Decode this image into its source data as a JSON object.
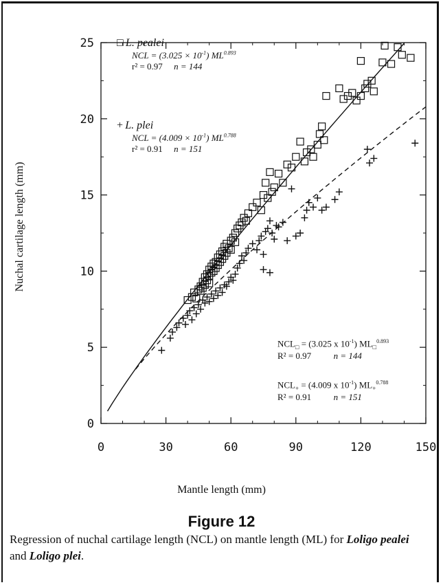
{
  "figure": {
    "title": "Figure 12",
    "caption_pre": "Regression of nuchal cartilage length (NCL) on mantle length (ML) for ",
    "caption_species1": "Loligo pealei",
    "caption_and": " and ",
    "caption_species2": "Loligo plei",
    "caption_end": "."
  },
  "legend": {
    "pealei": {
      "symbol": "□",
      "name": "L. pealei",
      "eq_main": "NCL = (3.025 × 10",
      "eq_exp1": "-1",
      "eq_mid": ") ML",
      "eq_exp2": "0.893",
      "r2": "r² = 0.97",
      "n": "n = 144"
    },
    "plei": {
      "symbol": "+",
      "name": "L. plei",
      "eq_main": "NCL = (4.009 × 10",
      "eq_exp1": "-1",
      "eq_mid": ") ML",
      "eq_exp2": "0.788",
      "r2": "r² = 0.91",
      "n": "n = 151"
    }
  },
  "annotation": {
    "line1_pre": "NCL",
    "line1_sub": "□",
    "line1_mid": " = (3.025 x 10",
    "line1_exp1": "-1",
    "line1_mid2": ") ML",
    "line1_sub2": "□",
    "line1_exp2": "0.893",
    "line1_r2": "R² = 0.97",
    "line1_n": "n = 144",
    "line2_pre": "NCL",
    "line2_sub": "+",
    "line2_mid": " = (4.009 x 10",
    "line2_exp1": "-1",
    "line2_mid2": ") ML",
    "line2_sub2": "+",
    "line2_exp2": "0.788",
    "line2_r2": "R² = 0.91",
    "line2_n": "n = 151"
  },
  "chart_data": {
    "type": "scatter",
    "xlabel": "Mantle length (mm)",
    "ylabel": "Nuchal cartilage length (mm)",
    "xlim": [
      0,
      150
    ],
    "ylim": [
      0,
      25
    ],
    "xticks": [
      0,
      30,
      60,
      90,
      120,
      150
    ],
    "yticks": [
      0,
      5,
      10,
      15,
      20,
      25
    ],
    "grid": false,
    "legend_position": "top-left",
    "series": [
      {
        "name": "L. pealei",
        "marker": "square",
        "fit": {
          "a": 0.3025,
          "b": 0.893,
          "x_range": [
            3,
            140
          ],
          "style": "solid"
        },
        "points": [
          [
            40,
            8.1
          ],
          [
            42,
            8.3
          ],
          [
            43,
            8.6
          ],
          [
            44,
            8.2
          ],
          [
            45,
            8.8
          ],
          [
            46,
            9.0
          ],
          [
            46,
            8.7
          ],
          [
            47,
            9.3
          ],
          [
            47,
            8.9
          ],
          [
            48,
            9.6
          ],
          [
            48,
            9.1
          ],
          [
            49,
            9.8
          ],
          [
            49,
            9.4
          ],
          [
            50,
            10.1
          ],
          [
            50,
            9.7
          ],
          [
            50,
            9.2
          ],
          [
            51,
            10.3
          ],
          [
            51,
            9.9
          ],
          [
            52,
            10.5
          ],
          [
            52,
            10.0
          ],
          [
            53,
            10.6
          ],
          [
            53,
            10.2
          ],
          [
            54,
            10.9
          ],
          [
            54,
            10.4
          ],
          [
            55,
            11.1
          ],
          [
            55,
            10.6
          ],
          [
            56,
            11.3
          ],
          [
            56,
            10.8
          ],
          [
            57,
            11.0
          ],
          [
            57,
            11.6
          ],
          [
            58,
            11.2
          ],
          [
            58,
            11.8
          ],
          [
            59,
            11.5
          ],
          [
            60,
            12.0
          ],
          [
            60,
            11.4
          ],
          [
            61,
            12.2
          ],
          [
            62,
            12.5
          ],
          [
            62,
            11.9
          ],
          [
            63,
            12.8
          ],
          [
            64,
            13.0
          ],
          [
            65,
            13.2
          ],
          [
            66,
            13.5
          ],
          [
            67,
            13.3
          ],
          [
            68,
            13.8
          ],
          [
            70,
            14.2
          ],
          [
            72,
            14.5
          ],
          [
            74,
            14.0
          ],
          [
            75,
            15.0
          ],
          [
            76,
            15.8
          ],
          [
            77,
            14.8
          ],
          [
            78,
            16.5
          ],
          [
            79,
            15.2
          ],
          [
            80,
            15.5
          ],
          [
            82,
            16.4
          ],
          [
            84,
            15.8
          ],
          [
            86,
            17.0
          ],
          [
            88,
            16.8
          ],
          [
            90,
            17.5
          ],
          [
            92,
            18.5
          ],
          [
            94,
            17.2
          ],
          [
            95,
            17.8
          ],
          [
            97,
            18.0
          ],
          [
            98,
            17.5
          ],
          [
            100,
            18.3
          ],
          [
            101,
            19.0
          ],
          [
            102,
            19.5
          ],
          [
            103,
            18.6
          ],
          [
            104,
            21.5
          ],
          [
            110,
            22.0
          ],
          [
            112,
            21.3
          ],
          [
            114,
            21.5
          ],
          [
            116,
            21.7
          ],
          [
            118,
            21.2
          ],
          [
            120,
            23.8
          ],
          [
            120,
            21.5
          ],
          [
            122,
            22.0
          ],
          [
            123,
            22.3
          ],
          [
            125,
            22.5
          ],
          [
            126,
            21.8
          ],
          [
            130,
            23.7
          ],
          [
            131,
            24.8
          ],
          [
            134,
            23.6
          ],
          [
            137,
            24.7
          ],
          [
            139,
            24.2
          ],
          [
            143,
            24.0
          ]
        ]
      },
      {
        "name": "L. plei",
        "marker": "plus",
        "fit": {
          "a": 0.4009,
          "b": 0.788,
          "x_range": [
            16,
            150
          ],
          "style": "dashed"
        },
        "points": [
          [
            28,
            4.8
          ],
          [
            32,
            5.6
          ],
          [
            33,
            6.0
          ],
          [
            35,
            6.3
          ],
          [
            36,
            6.6
          ],
          [
            38,
            6.9
          ],
          [
            39,
            6.5
          ],
          [
            40,
            7.1
          ],
          [
            41,
            7.4
          ],
          [
            42,
            6.8
          ],
          [
            43,
            7.6
          ],
          [
            44,
            7.2
          ],
          [
            45,
            7.8
          ],
          [
            46,
            7.5
          ],
          [
            47,
            8.1
          ],
          [
            48,
            7.9
          ],
          [
            49,
            8.3
          ],
          [
            50,
            8.0
          ],
          [
            51,
            8.5
          ],
          [
            52,
            8.2
          ],
          [
            53,
            8.7
          ],
          [
            54,
            8.4
          ],
          [
            55,
            8.9
          ],
          [
            56,
            8.6
          ],
          [
            57,
            9.1
          ],
          [
            58,
            9.0
          ],
          [
            59,
            9.3
          ],
          [
            60,
            9.6
          ],
          [
            61,
            9.4
          ],
          [
            62,
            9.8
          ],
          [
            63,
            10.2
          ],
          [
            64,
            10.5
          ],
          [
            65,
            11.0
          ],
          [
            66,
            10.7
          ],
          [
            67,
            11.2
          ],
          [
            68,
            11.5
          ],
          [
            70,
            11.8
          ],
          [
            72,
            11.4
          ],
          [
            73,
            12.0
          ],
          [
            74,
            12.3
          ],
          [
            75,
            11.1
          ],
          [
            75,
            10.1
          ],
          [
            76,
            12.6
          ],
          [
            77,
            12.8
          ],
          [
            78,
            9.9
          ],
          [
            78,
            13.3
          ],
          [
            79,
            12.5
          ],
          [
            80,
            12.1
          ],
          [
            81,
            13.0
          ],
          [
            82,
            12.9
          ],
          [
            84,
            13.2
          ],
          [
            86,
            12.0
          ],
          [
            88,
            15.4
          ],
          [
            90,
            12.3
          ],
          [
            92,
            12.5
          ],
          [
            94,
            13.5
          ],
          [
            95,
            14.0
          ],
          [
            96,
            14.5
          ],
          [
            98,
            14.2
          ],
          [
            100,
            14.8
          ],
          [
            102,
            14.0
          ],
          [
            104,
            14.2
          ],
          [
            108,
            14.7
          ],
          [
            110,
            15.2
          ],
          [
            123,
            18.0
          ],
          [
            124,
            17.1
          ],
          [
            126,
            17.4
          ],
          [
            145,
            18.4
          ]
        ]
      }
    ]
  }
}
